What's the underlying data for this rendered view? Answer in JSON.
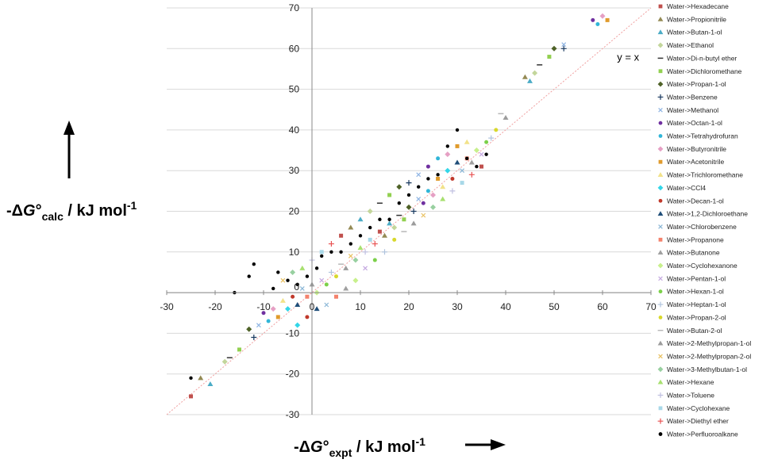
{
  "chart_data": {
    "type": "scatter",
    "xlabel": {
      "prefix": "-Δ",
      "italic": "G",
      "rest": "°",
      "sub": "expt",
      "unit": " / kJ mol",
      "sup": "-1"
    },
    "ylabel": {
      "prefix": "-Δ",
      "italic": "G",
      "rest": "°",
      "sub": "calc",
      "unit": " / kJ mol",
      "sup": "-1"
    },
    "xlim": [
      -30,
      70
    ],
    "ylim": [
      -30,
      70
    ],
    "x_ticks": [
      "-30",
      "-20",
      "-10",
      "0",
      "10",
      "20",
      "30",
      "40",
      "50",
      "60",
      "70"
    ],
    "y_ticks": [
      "-30",
      "-20",
      "-10",
      "0",
      "10",
      "20",
      "30",
      "40",
      "50",
      "60",
      "70"
    ],
    "grid": "horizontal",
    "legend_position": "right",
    "annotations": [
      {
        "text": "y = x",
        "x": 63,
        "y": 57
      }
    ],
    "reference_line": {
      "label": "y = x",
      "color": "#f0a0a0"
    },
    "series": [
      {
        "name": "Water->Hexadecane",
        "color": "#c0504d",
        "marker": "square"
      },
      {
        "name": "Water->Propionitrile",
        "color": "#948a54",
        "marker": "triangle"
      },
      {
        "name": "Water->Butan-1-ol",
        "color": "#4bacc6",
        "marker": "triangle"
      },
      {
        "name": "Water->Ethanol",
        "color": "#c3d69b",
        "marker": "diamond"
      },
      {
        "name": "Water->Di-n-butyl ether",
        "color": "#333333",
        "marker": "dash"
      },
      {
        "name": "Water->Dichloromethane",
        "color": "#92d050",
        "marker": "square"
      },
      {
        "name": "Water->Propan-1-ol",
        "color": "#4f6228",
        "marker": "diamond"
      },
      {
        "name": "Water->Benzene",
        "color": "#17375e",
        "marker": "plus"
      },
      {
        "name": "Water->Methanol",
        "color": "#8eb4e3",
        "marker": "x"
      },
      {
        "name": "Water->Octan-1-ol",
        "color": "#7030a0",
        "marker": "circle"
      },
      {
        "name": "Water->Tetrahydrofuran",
        "color": "#31b6d8",
        "marker": "circle"
      },
      {
        "name": "Water->Butyronitrile",
        "color": "#e6a0c4",
        "marker": "diamond"
      },
      {
        "name": "Water->Acetonitrile",
        "color": "#e09b2c",
        "marker": "square"
      },
      {
        "name": "Water->Trichloromethane",
        "color": "#f2e28a",
        "marker": "triangle"
      },
      {
        "name": "Water->CCl4",
        "color": "#33d6e8",
        "marker": "diamond"
      },
      {
        "name": "Water->Decan-1-ol",
        "color": "#c0392b",
        "marker": "circle"
      },
      {
        "name": "Water->1,2-Dichloroethane",
        "color": "#1f4e79",
        "marker": "triangle"
      },
      {
        "name": "Water->Chlorobenzene",
        "color": "#8ab6d6",
        "marker": "x"
      },
      {
        "name": "Water->Propanone",
        "color": "#f4826c",
        "marker": "square"
      },
      {
        "name": "Water->Butanone",
        "color": "#a0a0a0",
        "marker": "triangle"
      },
      {
        "name": "Water->Cyclohexanone",
        "color": "#c8f08c",
        "marker": "diamond"
      },
      {
        "name": "Water->Pentan-1-ol",
        "color": "#c4a8e0",
        "marker": "x"
      },
      {
        "name": "Water->Hexan-1-ol",
        "color": "#7cd04a",
        "marker": "circle"
      },
      {
        "name": "Water->Heptan-1-ol",
        "color": "#b0c4de",
        "marker": "plus"
      },
      {
        "name": "Water->Propan-2-ol",
        "color": "#d8d82c",
        "marker": "circle"
      },
      {
        "name": "Water->Butan-2-ol",
        "color": "#b8b8b8",
        "marker": "dash"
      },
      {
        "name": "Water->2-Methylpropan-1-ol",
        "color": "#9c9c9c",
        "marker": "triangle"
      },
      {
        "name": "Water->2-Methylpropan-2-ol",
        "color": "#e8c060",
        "marker": "x"
      },
      {
        "name": "Water->3-Methylbutan-1-ol",
        "color": "#98d0a0",
        "marker": "diamond"
      },
      {
        "name": "Water->Hexane",
        "color": "#a8e070",
        "marker": "triangle"
      },
      {
        "name": "Water->Toluene",
        "color": "#c0c0e0",
        "marker": "plus"
      },
      {
        "name": "Water->Cyclohexane",
        "color": "#a8d8e8",
        "marker": "square"
      },
      {
        "name": "Water->Diethyl ether",
        "color": "#e85050",
        "marker": "plus"
      },
      {
        "name": "Water->Perfluoroalkane",
        "color": "#000000",
        "marker": "circle"
      }
    ],
    "points": [
      [
        -25,
        -25.5
      ],
      [
        -23,
        -21
      ],
      [
        -21,
        -22.5
      ],
      [
        -18,
        -17
      ],
      [
        -17,
        -16
      ],
      [
        -15,
        -14
      ],
      [
        -13,
        -9
      ],
      [
        -12,
        -11
      ],
      [
        -11,
        -8
      ],
      [
        -10,
        -5
      ],
      [
        -9,
        -7
      ],
      [
        -8,
        -4
      ],
      [
        -7,
        -6
      ],
      [
        -6,
        -2
      ],
      [
        -5,
        -4
      ],
      [
        -4,
        -1
      ],
      [
        -3,
        -3
      ],
      [
        -2,
        1
      ],
      [
        -1,
        -1
      ],
      [
        0,
        2
      ],
      [
        1,
        0
      ],
      [
        2,
        3
      ],
      [
        3,
        2
      ],
      [
        4,
        5
      ],
      [
        5,
        4
      ],
      [
        6,
        7
      ],
      [
        7,
        6
      ],
      [
        8,
        9
      ],
      [
        9,
        8
      ],
      [
        10,
        11
      ],
      [
        11,
        10
      ],
      [
        12,
        13
      ],
      [
        13,
        12
      ],
      [
        14,
        15
      ],
      [
        15,
        14
      ],
      [
        16,
        17
      ],
      [
        17,
        16
      ],
      [
        18,
        19
      ],
      [
        19,
        18
      ],
      [
        20,
        21
      ],
      [
        21,
        20
      ],
      [
        22,
        23
      ],
      [
        23,
        22
      ],
      [
        24,
        25
      ],
      [
        25,
        24
      ],
      [
        26,
        28
      ],
      [
        27,
        26
      ],
      [
        28,
        30
      ],
      [
        29,
        28
      ],
      [
        30,
        32
      ],
      [
        31,
        30
      ],
      [
        32,
        33
      ],
      [
        33,
        32
      ],
      [
        34,
        35
      ],
      [
        35,
        34
      ],
      [
        36,
        37
      ],
      [
        37,
        38
      ],
      [
        38,
        40
      ],
      [
        39,
        44
      ],
      [
        40,
        43
      ],
      [
        -6,
        3
      ],
      [
        -4,
        5
      ],
      [
        -2,
        6
      ],
      [
        0,
        8
      ],
      [
        2,
        10
      ],
      [
        4,
        12
      ],
      [
        6,
        14
      ],
      [
        8,
        16
      ],
      [
        10,
        18
      ],
      [
        12,
        20
      ],
      [
        14,
        22
      ],
      [
        16,
        24
      ],
      [
        18,
        26
      ],
      [
        20,
        27
      ],
      [
        22,
        29
      ],
      [
        24,
        31
      ],
      [
        26,
        33
      ],
      [
        28,
        34
      ],
      [
        30,
        36
      ],
      [
        32,
        37
      ],
      [
        -3,
        -8
      ],
      [
        -1,
        -6
      ],
      [
        1,
        -4
      ],
      [
        3,
        -3
      ],
      [
        5,
        -1
      ],
      [
        7,
        1
      ],
      [
        9,
        3
      ],
      [
        11,
        6
      ],
      [
        13,
        8
      ],
      [
        15,
        10
      ],
      [
        17,
        13
      ],
      [
        19,
        15
      ],
      [
        21,
        17
      ],
      [
        23,
        19
      ],
      [
        25,
        21
      ],
      [
        27,
        23
      ],
      [
        29,
        25
      ],
      [
        31,
        27
      ],
      [
        33,
        29
      ],
      [
        35,
        31
      ],
      [
        44,
        53
      ],
      [
        45,
        52
      ],
      [
        46,
        54
      ],
      [
        47,
        56
      ],
      [
        49,
        58
      ],
      [
        50,
        60
      ],
      [
        52,
        60
      ],
      [
        52,
        61
      ],
      [
        58,
        67
      ],
      [
        59,
        66
      ],
      [
        60,
        68
      ],
      [
        61,
        67
      ]
    ],
    "perfluoro_points": [
      [
        -25,
        -21
      ],
      [
        -16,
        0
      ],
      [
        -13,
        4
      ],
      [
        -12,
        7
      ],
      [
        -8,
        1
      ],
      [
        -7,
        5
      ],
      [
        -5,
        3
      ],
      [
        -3,
        2
      ],
      [
        -1,
        4
      ],
      [
        1,
        6
      ],
      [
        2,
        9
      ],
      [
        4,
        10
      ],
      [
        6,
        10
      ],
      [
        8,
        12
      ],
      [
        10,
        14
      ],
      [
        12,
        16
      ],
      [
        14,
        18
      ],
      [
        16,
        18
      ],
      [
        18,
        22
      ],
      [
        20,
        24
      ],
      [
        22,
        26
      ],
      [
        24,
        28
      ],
      [
        26,
        29
      ],
      [
        28,
        36
      ],
      [
        30,
        40
      ],
      [
        32,
        33
      ],
      [
        34,
        31
      ],
      [
        36,
        34
      ]
    ]
  }
}
